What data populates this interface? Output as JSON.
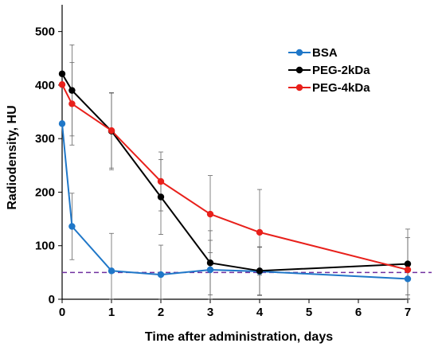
{
  "chart_data": {
    "type": "line",
    "title": "",
    "xlabel": "Time after administration, days",
    "ylabel": "Radiodensity, HU",
    "xlim": [
      0,
      7
    ],
    "ylim": [
      0,
      550
    ],
    "x_ticks": [
      0,
      1,
      2,
      3,
      4,
      5,
      6,
      7
    ],
    "y_ticks": [
      0,
      100,
      200,
      300,
      400,
      500
    ],
    "grid": false,
    "legend_position": "top-right",
    "reference_line": {
      "y": 50,
      "style": "dashed",
      "color": "#7030a0"
    },
    "series": [
      {
        "name": "BSA",
        "color": "#1f77c8",
        "x": [
          0,
          0.2,
          1,
          2,
          3,
          4,
          7
        ],
        "y": [
          328,
          136,
          53,
          46,
          55,
          52,
          38
        ],
        "err": [
          0,
          62,
          70,
          55,
          55,
          45,
          30
        ]
      },
      {
        "name": "PEG-2kDa",
        "color": "#000000",
        "x": [
          0,
          0.2,
          1,
          2,
          3,
          4,
          7
        ],
        "y": [
          421,
          390,
          314,
          191,
          68,
          53,
          66
        ],
        "err": [
          0,
          85,
          72,
          70,
          60,
          45,
          65
        ]
      },
      {
        "name": "PEG-4kDa",
        "color": "#e8201b",
        "x": [
          0,
          0.2,
          1,
          2,
          3,
          4,
          7
        ],
        "y": [
          401,
          365,
          315,
          220,
          159,
          125,
          55
        ],
        "err": [
          0,
          77,
          70,
          55,
          72,
          80,
          60
        ]
      }
    ]
  }
}
